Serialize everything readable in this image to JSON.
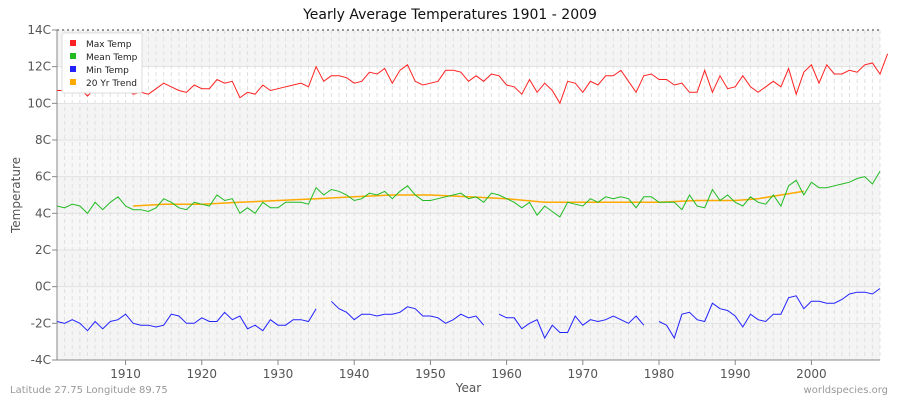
{
  "chart_data": {
    "type": "line",
    "title": "Yearly Average Temperatures 1901 - 2009",
    "xlabel": "Year",
    "ylabel": "Temperature",
    "xlim": [
      1901,
      2009
    ],
    "ylim": [
      -4,
      14
    ],
    "xticks": [
      1910,
      1920,
      1930,
      1940,
      1950,
      1960,
      1970,
      1980,
      1990,
      2000
    ],
    "yticks": [
      {
        "v": -4,
        "label": "-4C"
      },
      {
        "v": -2,
        "label": "-2C"
      },
      {
        "v": 0,
        "label": "0C"
      },
      {
        "v": 2,
        "label": "2C"
      },
      {
        "v": 4,
        "label": "4C"
      },
      {
        "v": 6,
        "label": "6C"
      },
      {
        "v": 8,
        "label": "8C"
      },
      {
        "v": 10,
        "label": "10C"
      },
      {
        "v": 12,
        "label": "12C"
      },
      {
        "v": 14,
        "label": "14C"
      }
    ],
    "grid": true,
    "legend_position": "top-left",
    "series": [
      {
        "name": "Max Temp",
        "color": "#ff2222",
        "x_start": 1901,
        "values": [
          10.7,
          10.7,
          10.9,
          10.8,
          10.4,
          10.8,
          10.7,
          10.8,
          10.8,
          10.8,
          10.5,
          10.6,
          10.5,
          10.8,
          11.1,
          10.9,
          10.7,
          10.6,
          11.0,
          10.8,
          10.8,
          11.3,
          11.1,
          11.2,
          10.3,
          10.6,
          10.5,
          11.0,
          10.7,
          10.8,
          10.9,
          11.0,
          11.1,
          10.9,
          12.0,
          11.2,
          11.5,
          11.5,
          11.4,
          11.1,
          11.2,
          11.7,
          11.6,
          11.9,
          11.1,
          11.8,
          12.1,
          11.2,
          11.0,
          11.1,
          11.2,
          11.8,
          11.8,
          11.7,
          11.2,
          11.5,
          11.2,
          11.6,
          11.5,
          11.0,
          10.9,
          10.5,
          11.3,
          10.6,
          11.1,
          10.7,
          10.0,
          11.2,
          11.1,
          10.6,
          11.2,
          11.0,
          11.5,
          11.5,
          11.8,
          11.2,
          10.6,
          11.5,
          11.6,
          11.3,
          11.3,
          11.0,
          11.1,
          10.6,
          10.6,
          11.8,
          10.6,
          11.5,
          10.8,
          10.9,
          11.5,
          10.9,
          10.6,
          10.9,
          11.2,
          10.9,
          11.9,
          10.5,
          11.7,
          12.1,
          11.1,
          12.1,
          11.6,
          11.6,
          11.8,
          11.7,
          12.1,
          12.2,
          11.6,
          12.7
        ]
      },
      {
        "name": "Mean Temp",
        "color": "#22bb22",
        "x_start": 1901,
        "values": [
          4.4,
          4.3,
          4.5,
          4.4,
          4.0,
          4.6,
          4.2,
          4.6,
          4.9,
          4.4,
          4.2,
          4.2,
          4.1,
          4.3,
          4.8,
          4.6,
          4.3,
          4.2,
          4.6,
          4.5,
          4.4,
          5.0,
          4.7,
          4.8,
          4.0,
          4.3,
          4.0,
          4.6,
          4.3,
          4.3,
          4.6,
          4.6,
          4.6,
          4.5,
          5.4,
          5.0,
          5.3,
          5.2,
          5.0,
          4.7,
          4.8,
          5.1,
          5.0,
          5.2,
          4.8,
          5.2,
          5.5,
          5.0,
          4.7,
          4.7,
          4.8,
          4.9,
          5.0,
          5.1,
          4.8,
          4.9,
          4.6,
          5.1,
          5.0,
          4.8,
          4.6,
          4.3,
          4.6,
          3.9,
          4.4,
          4.1,
          3.8,
          4.6,
          4.5,
          4.4,
          4.8,
          4.6,
          4.9,
          4.8,
          4.9,
          4.8,
          4.3,
          4.9,
          4.9,
          4.6,
          4.6,
          4.6,
          4.2,
          5.0,
          4.4,
          4.3,
          5.3,
          4.7,
          5.0,
          4.6,
          4.4,
          4.9,
          4.6,
          4.5,
          5.0,
          4.4,
          5.5,
          5.8,
          5.0,
          5.7,
          5.4,
          5.4,
          5.5,
          5.6,
          5.7,
          5.9,
          6.0,
          5.6,
          6.3
        ]
      },
      {
        "name": "Min Temp",
        "color": "#2222ff",
        "x_start": 1901,
        "values": [
          -1.9,
          -2.0,
          -1.8,
          -2.0,
          -2.4,
          -1.9,
          -2.3,
          -1.9,
          -1.8,
          -1.5,
          -2.0,
          -2.1,
          -2.1,
          -2.2,
          -2.1,
          -1.5,
          -1.6,
          -2.0,
          -2.0,
          -1.7,
          -1.9,
          -1.9,
          -1.4,
          -1.8,
          -1.6,
          -2.3,
          -2.1,
          -2.4,
          -1.8,
          -2.1,
          -2.1,
          -1.8,
          -1.8,
          -1.9,
          -1.2,
          null,
          -0.8,
          -1.2,
          -1.4,
          -1.8,
          -1.5,
          -1.5,
          -1.6,
          -1.5,
          -1.5,
          -1.4,
          -1.1,
          -1.2,
          -1.6,
          -1.6,
          -1.7,
          -2.0,
          -1.8,
          -1.5,
          -1.7,
          -1.6,
          -2.1,
          null,
          -1.5,
          -1.7,
          -1.7,
          -2.3,
          -2.0,
          -1.8,
          -2.8,
          -2.1,
          -2.5,
          -2.5,
          -1.6,
          -2.1,
          -1.8,
          -1.9,
          -1.8,
          -1.6,
          -1.8,
          -2.0,
          -1.6,
          -2.1,
          null,
          -1.9,
          -2.1,
          -2.8,
          -1.5,
          -1.4,
          -1.8,
          -1.9,
          -0.9,
          -1.2,
          -1.3,
          -1.6,
          -2.2,
          -1.5,
          -1.8,
          -1.9,
          -1.5,
          -1.5,
          -0.6,
          -0.5,
          -1.2,
          -0.8,
          -0.8,
          -0.9,
          -0.9,
          -0.7,
          -0.4,
          -0.3,
          -0.3,
          -0.4,
          -0.1
        ]
      },
      {
        "name": "20 Yr Trend",
        "color": "#ffaa00",
        "x": [
          1911,
          1915,
          1920,
          1925,
          1930,
          1935,
          1940,
          1945,
          1950,
          1955,
          1960,
          1965,
          1970,
          1975,
          1980,
          1985,
          1990,
          1993,
          1996,
          1999
        ],
        "values": [
          4.4,
          4.5,
          4.5,
          4.6,
          4.7,
          4.8,
          4.9,
          5.0,
          5.0,
          4.9,
          4.8,
          4.6,
          4.6,
          4.6,
          4.6,
          4.7,
          4.7,
          4.8,
          5.0,
          5.2
        ]
      }
    ]
  },
  "footer": {
    "location": "Latitude 27.75 Longitude 89.75",
    "site": "worldspecies.org"
  }
}
